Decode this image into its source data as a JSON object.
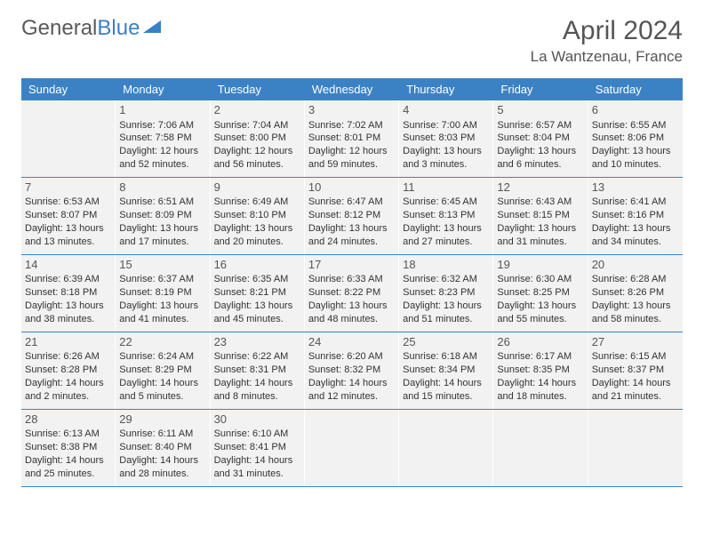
{
  "logo": {
    "text1": "General",
    "text2": "Blue"
  },
  "title": "April 2024",
  "location": "La Wantzenau, France",
  "dayNames": [
    "Sunday",
    "Monday",
    "Tuesday",
    "Wednesday",
    "Thursday",
    "Friday",
    "Saturday"
  ],
  "colors": {
    "headerBg": "#3b82c4",
    "headerText": "#ffffff",
    "cellBg": "#f2f2f2",
    "border": "#3b82c4",
    "logoGray": "#5a5a5a",
    "logoBlue": "#3b7fc4"
  },
  "startOffset": 1,
  "days": [
    {
      "n": "1",
      "sunrise": "Sunrise: 7:06 AM",
      "sunset": "Sunset: 7:58 PM",
      "daylight": "Daylight: 12 hours and 52 minutes."
    },
    {
      "n": "2",
      "sunrise": "Sunrise: 7:04 AM",
      "sunset": "Sunset: 8:00 PM",
      "daylight": "Daylight: 12 hours and 56 minutes."
    },
    {
      "n": "3",
      "sunrise": "Sunrise: 7:02 AM",
      "sunset": "Sunset: 8:01 PM",
      "daylight": "Daylight: 12 hours and 59 minutes."
    },
    {
      "n": "4",
      "sunrise": "Sunrise: 7:00 AM",
      "sunset": "Sunset: 8:03 PM",
      "daylight": "Daylight: 13 hours and 3 minutes."
    },
    {
      "n": "5",
      "sunrise": "Sunrise: 6:57 AM",
      "sunset": "Sunset: 8:04 PM",
      "daylight": "Daylight: 13 hours and 6 minutes."
    },
    {
      "n": "6",
      "sunrise": "Sunrise: 6:55 AM",
      "sunset": "Sunset: 8:06 PM",
      "daylight": "Daylight: 13 hours and 10 minutes."
    },
    {
      "n": "7",
      "sunrise": "Sunrise: 6:53 AM",
      "sunset": "Sunset: 8:07 PM",
      "daylight": "Daylight: 13 hours and 13 minutes."
    },
    {
      "n": "8",
      "sunrise": "Sunrise: 6:51 AM",
      "sunset": "Sunset: 8:09 PM",
      "daylight": "Daylight: 13 hours and 17 minutes."
    },
    {
      "n": "9",
      "sunrise": "Sunrise: 6:49 AM",
      "sunset": "Sunset: 8:10 PM",
      "daylight": "Daylight: 13 hours and 20 minutes."
    },
    {
      "n": "10",
      "sunrise": "Sunrise: 6:47 AM",
      "sunset": "Sunset: 8:12 PM",
      "daylight": "Daylight: 13 hours and 24 minutes."
    },
    {
      "n": "11",
      "sunrise": "Sunrise: 6:45 AM",
      "sunset": "Sunset: 8:13 PM",
      "daylight": "Daylight: 13 hours and 27 minutes."
    },
    {
      "n": "12",
      "sunrise": "Sunrise: 6:43 AM",
      "sunset": "Sunset: 8:15 PM",
      "daylight": "Daylight: 13 hours and 31 minutes."
    },
    {
      "n": "13",
      "sunrise": "Sunrise: 6:41 AM",
      "sunset": "Sunset: 8:16 PM",
      "daylight": "Daylight: 13 hours and 34 minutes."
    },
    {
      "n": "14",
      "sunrise": "Sunrise: 6:39 AM",
      "sunset": "Sunset: 8:18 PM",
      "daylight": "Daylight: 13 hours and 38 minutes."
    },
    {
      "n": "15",
      "sunrise": "Sunrise: 6:37 AM",
      "sunset": "Sunset: 8:19 PM",
      "daylight": "Daylight: 13 hours and 41 minutes."
    },
    {
      "n": "16",
      "sunrise": "Sunrise: 6:35 AM",
      "sunset": "Sunset: 8:21 PM",
      "daylight": "Daylight: 13 hours and 45 minutes."
    },
    {
      "n": "17",
      "sunrise": "Sunrise: 6:33 AM",
      "sunset": "Sunset: 8:22 PM",
      "daylight": "Daylight: 13 hours and 48 minutes."
    },
    {
      "n": "18",
      "sunrise": "Sunrise: 6:32 AM",
      "sunset": "Sunset: 8:23 PM",
      "daylight": "Daylight: 13 hours and 51 minutes."
    },
    {
      "n": "19",
      "sunrise": "Sunrise: 6:30 AM",
      "sunset": "Sunset: 8:25 PM",
      "daylight": "Daylight: 13 hours and 55 minutes."
    },
    {
      "n": "20",
      "sunrise": "Sunrise: 6:28 AM",
      "sunset": "Sunset: 8:26 PM",
      "daylight": "Daylight: 13 hours and 58 minutes."
    },
    {
      "n": "21",
      "sunrise": "Sunrise: 6:26 AM",
      "sunset": "Sunset: 8:28 PM",
      "daylight": "Daylight: 14 hours and 2 minutes."
    },
    {
      "n": "22",
      "sunrise": "Sunrise: 6:24 AM",
      "sunset": "Sunset: 8:29 PM",
      "daylight": "Daylight: 14 hours and 5 minutes."
    },
    {
      "n": "23",
      "sunrise": "Sunrise: 6:22 AM",
      "sunset": "Sunset: 8:31 PM",
      "daylight": "Daylight: 14 hours and 8 minutes."
    },
    {
      "n": "24",
      "sunrise": "Sunrise: 6:20 AM",
      "sunset": "Sunset: 8:32 PM",
      "daylight": "Daylight: 14 hours and 12 minutes."
    },
    {
      "n": "25",
      "sunrise": "Sunrise: 6:18 AM",
      "sunset": "Sunset: 8:34 PM",
      "daylight": "Daylight: 14 hours and 15 minutes."
    },
    {
      "n": "26",
      "sunrise": "Sunrise: 6:17 AM",
      "sunset": "Sunset: 8:35 PM",
      "daylight": "Daylight: 14 hours and 18 minutes."
    },
    {
      "n": "27",
      "sunrise": "Sunrise: 6:15 AM",
      "sunset": "Sunset: 8:37 PM",
      "daylight": "Daylight: 14 hours and 21 minutes."
    },
    {
      "n": "28",
      "sunrise": "Sunrise: 6:13 AM",
      "sunset": "Sunset: 8:38 PM",
      "daylight": "Daylight: 14 hours and 25 minutes."
    },
    {
      "n": "29",
      "sunrise": "Sunrise: 6:11 AM",
      "sunset": "Sunset: 8:40 PM",
      "daylight": "Daylight: 14 hours and 28 minutes."
    },
    {
      "n": "30",
      "sunrise": "Sunrise: 6:10 AM",
      "sunset": "Sunset: 8:41 PM",
      "daylight": "Daylight: 14 hours and 31 minutes."
    }
  ]
}
